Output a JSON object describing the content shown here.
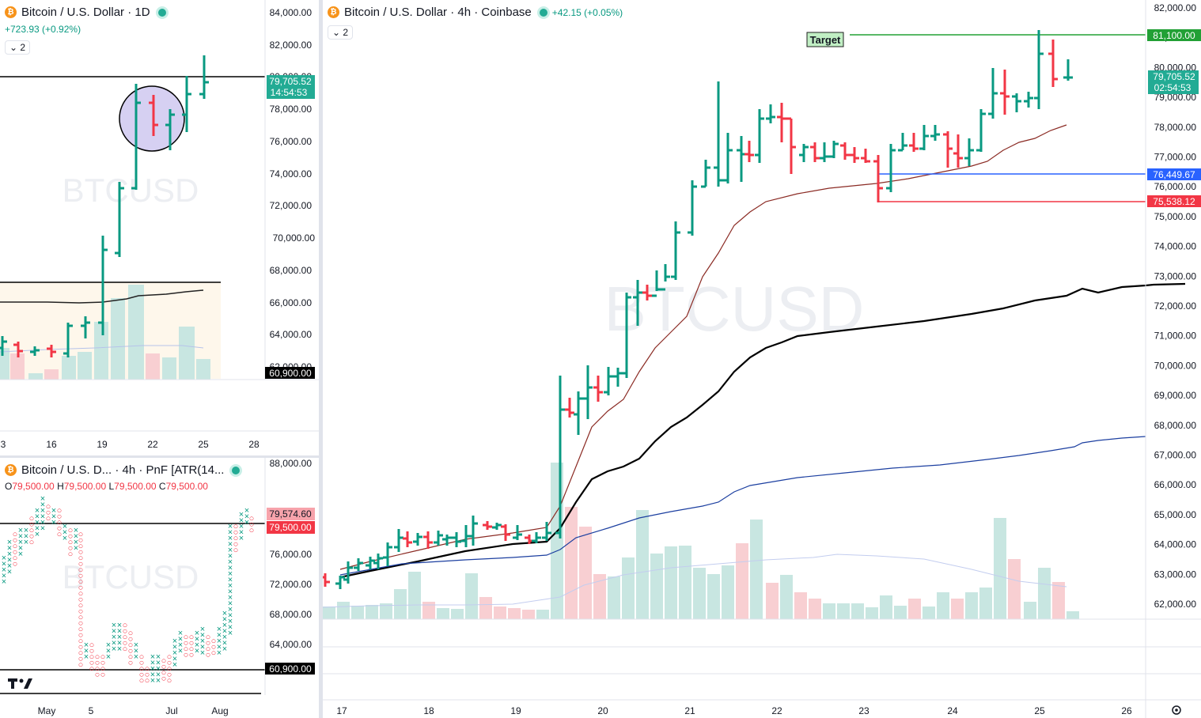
{
  "top_left": {
    "title": "Bitcoin / U.S. Dollar · 1D",
    "change": "+723.93 (+0.92%)",
    "count": "2",
    "watermark": "BTCUSD",
    "y_ticks": [
      "84,000.00",
      "82,000.00",
      "80,000.00",
      "78,000.00",
      "76,000.00",
      "74,000.00",
      "72,000.00",
      "70,000.00",
      "68,000.00",
      "66,000.00",
      "64,000.00",
      "62,000.00"
    ],
    "x_ticks": [
      "3",
      "16",
      "19",
      "22",
      "25",
      "28"
    ],
    "price_label": "79,705.52",
    "countdown": "14:54:53",
    "level_label": "60,900.00",
    "colors": {
      "up": "#089981",
      "down": "#f23645",
      "price_badge": "#22ab94"
    }
  },
  "bottom_left": {
    "title": "Bitcoin / U.S. D... · 4h · PnF [ATR(14...",
    "ohlc": {
      "o_label": "O",
      "o": "79,500.00",
      "h_label": "H",
      "h": "79,500.00",
      "l_label": "L",
      "l": "79,500.00",
      "c_label": "C",
      "c": "79,500.00"
    },
    "watermark": "BTCUSD",
    "y_ticks": [
      "88,000.00",
      "76,000.00",
      "72,000.00",
      "68,000.00",
      "64,000.00"
    ],
    "x_ticks": [
      "May",
      "5",
      "Jul",
      "Aug"
    ],
    "label_a": "79,574.60",
    "label_b": "79,500.00",
    "level_label": "60,900.00"
  },
  "main": {
    "title": "Bitcoin / U.S. Dollar · 4h · Coinbase",
    "change": "+42.15 (+0.05%)",
    "count": "2",
    "watermark": "BTCUSD",
    "target_label": "Target",
    "target_price": "81,100.00",
    "blue_level": "76,449.67",
    "red_level": "75,538.12",
    "price_label": "79,705.52",
    "countdown": "02:54:53",
    "y_ticks": [
      "82,000.00",
      "81,000.00",
      "80,000.00",
      "79,000.00",
      "78,000.00",
      "77,000.00",
      "76,000.00",
      "75,000.00",
      "74,000.00",
      "73,000.00",
      "72,000.00",
      "71,000.00",
      "70,000.00",
      "69,000.00",
      "68,000.00",
      "67,000.00",
      "66,000.00",
      "65,000.00",
      "64,000.00",
      "63,000.00",
      "62,000.00"
    ],
    "x_ticks": [
      "17",
      "18",
      "19",
      "20",
      "21",
      "22",
      "23",
      "24",
      "25",
      "26"
    ],
    "colors": {
      "up": "#089981",
      "down": "#f23645",
      "target": "#22a035",
      "blue": "#2962ff",
      "red": "#f23645",
      "ma_dark": "#000000",
      "ma_brown": "#8b2b24",
      "ma_blue": "#1c3fa0"
    }
  }
}
